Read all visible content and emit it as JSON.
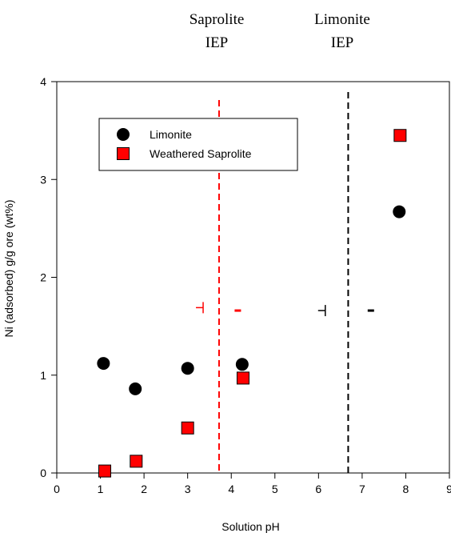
{
  "chart_data": {
    "type": "scatter",
    "title": "",
    "xlabel": "Solution pH",
    "ylabel": "Ni (adsorbed) g/g ore (wt%)",
    "xlim": [
      0,
      9
    ],
    "ylim": [
      0,
      4
    ],
    "xticks": [
      "0",
      "1",
      "2",
      "3",
      "4",
      "5",
      "6",
      "7",
      "8",
      "9"
    ],
    "yticks": [
      "0",
      "1",
      "2",
      "3",
      "4"
    ],
    "grid": false,
    "legend_position": "upper-left",
    "series": [
      {
        "name": "Limonite",
        "marker": "circle",
        "color": "#000000",
        "x": [
          1.07,
          1.8,
          3.0,
          4.25,
          7.85
        ],
        "y": [
          1.12,
          0.86,
          1.07,
          1.11,
          2.67
        ]
      },
      {
        "name": "Weathered Saprolite",
        "marker": "square",
        "color": "#ff0000",
        "x": [
          1.1,
          1.82,
          3.0,
          4.27,
          7.87
        ],
        "y": [
          0.02,
          0.12,
          0.46,
          0.97,
          3.45
        ]
      }
    ],
    "reference_lines": [
      {
        "x": 3.72,
        "color": "#ff0000",
        "style": "dashed",
        "label_line1": "Saprolite",
        "label_line2": "IEP"
      },
      {
        "x": 6.68,
        "color": "#000000",
        "style": "dashed",
        "label_line1": "Limonite",
        "label_line2": "IEP"
      }
    ],
    "annotations": [
      {
        "text": "+",
        "x": 3.3,
        "y": 1.69,
        "color": "#ff0000",
        "shape": "plus"
      },
      {
        "text": "-",
        "x": 4.15,
        "y": 1.66,
        "color": "#ff0000",
        "shape": "minus"
      },
      {
        "text": "+",
        "x": 6.1,
        "y": 1.66,
        "color": "#000000",
        "shape": "plus"
      },
      {
        "text": "-",
        "x": 7.2,
        "y": 1.66,
        "color": "#000000",
        "shape": "minus"
      }
    ]
  }
}
